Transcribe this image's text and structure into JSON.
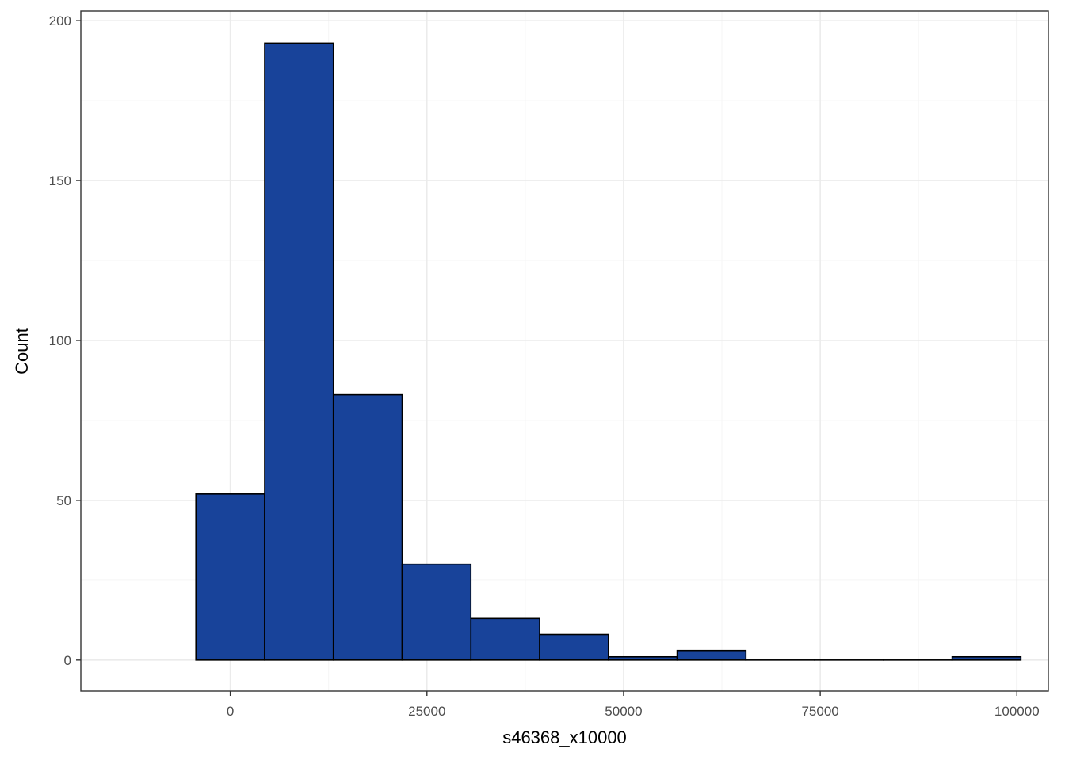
{
  "chart_data": {
    "type": "bar",
    "subtype": "histogram",
    "xlabel": "s46368_x10000",
    "ylabel": "Count",
    "xlim": [
      -19000,
      104000
    ],
    "ylim": [
      -9.7,
      203
    ],
    "x_ticks": [
      0,
      25000,
      50000,
      75000,
      100000
    ],
    "x_tick_labels": [
      "0",
      "25000",
      "50000",
      "75000",
      "100000"
    ],
    "y_ticks": [
      0,
      50,
      100,
      150,
      200
    ],
    "y_tick_labels": [
      "0",
      "50",
      "100",
      "150",
      "200"
    ],
    "x_minor_grid": [
      -12500,
      12500,
      37500,
      62500,
      87500
    ],
    "y_minor_grid": [
      25,
      75,
      125,
      175
    ],
    "grid": true,
    "bins": [
      {
        "x0": -4370,
        "x1": 4370,
        "count": 52
      },
      {
        "x0": 4370,
        "x1": 13110,
        "count": 193
      },
      {
        "x0": 13110,
        "x1": 21850,
        "count": 83
      },
      {
        "x0": 21850,
        "x1": 30590,
        "count": 30
      },
      {
        "x0": 30590,
        "x1": 39330,
        "count": 13
      },
      {
        "x0": 39330,
        "x1": 48070,
        "count": 8
      },
      {
        "x0": 48070,
        "x1": 56810,
        "count": 1
      },
      {
        "x0": 56810,
        "x1": 65550,
        "count": 3
      },
      {
        "x0": 65550,
        "x1": 74290,
        "count": 0
      },
      {
        "x0": 74290,
        "x1": 83030,
        "count": 0
      },
      {
        "x0": 83030,
        "x1": 91770,
        "count": 0
      },
      {
        "x0": 91770,
        "x1": 100510,
        "count": 1
      }
    ],
    "colors": {
      "bar_fill": "#18439A",
      "bar_stroke": "#000000",
      "grid_major": "#ebebeb",
      "grid_minor": "#f5f5f5",
      "panel_border": "#333333"
    }
  }
}
